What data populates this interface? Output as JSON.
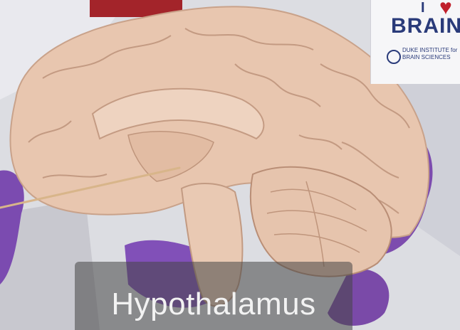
{
  "sign": {
    "brand_line": "BRAIN",
    "heart_line": "I",
    "institute": "DUKE INSTITUTE for BRAIN SCIENCES"
  },
  "caption": {
    "text": "Hypothalamus"
  },
  "colors": {
    "tissue": "#e6c4ad",
    "glove": "#7b4bb0",
    "caption_bg": "#555555"
  }
}
